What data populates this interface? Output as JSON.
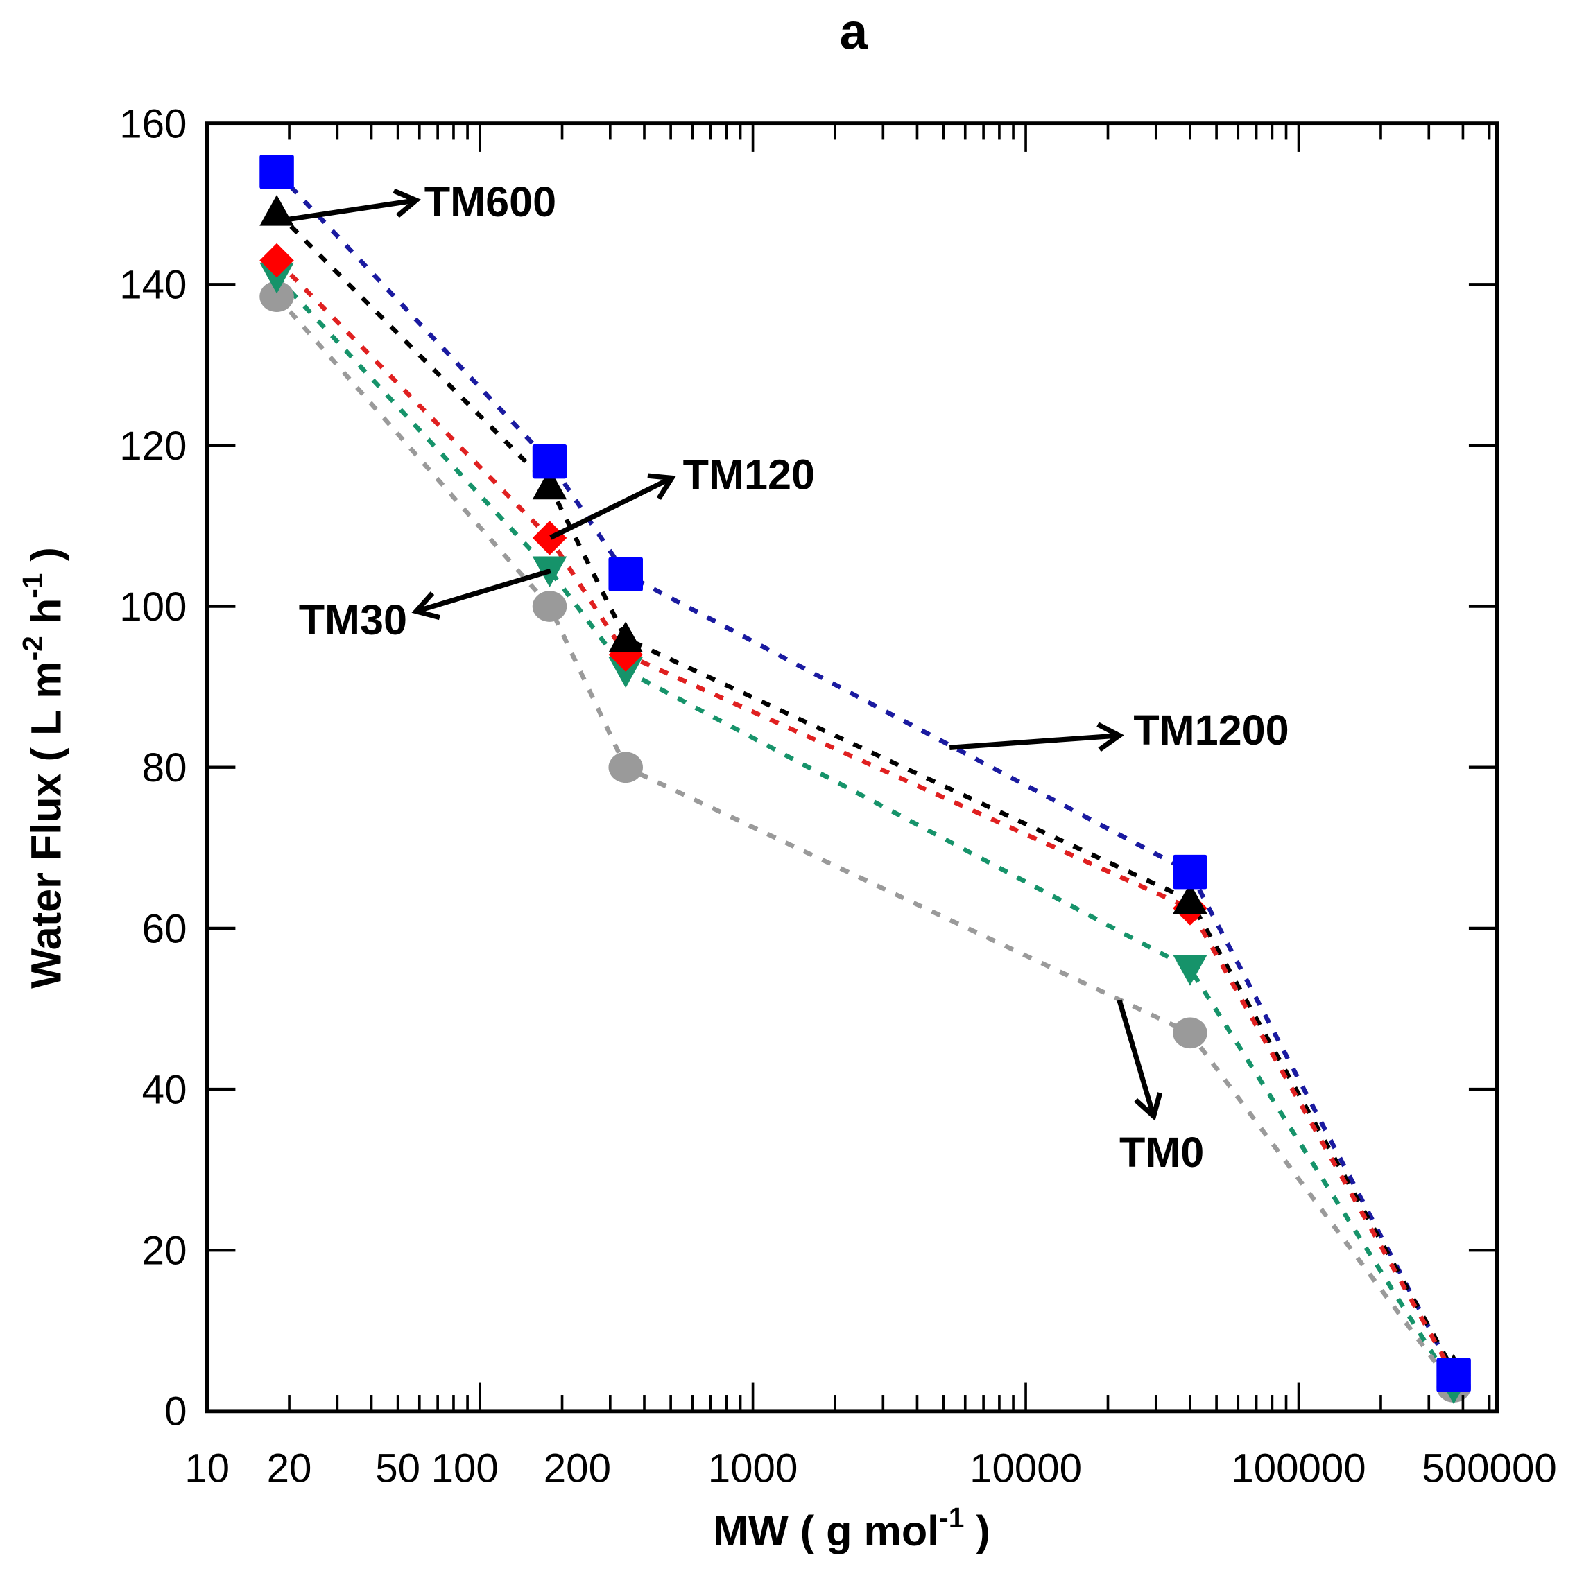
{
  "chart_data": {
    "type": "line",
    "title": "a",
    "xlabel": "MW ( g mol",
    "xlabel_sup": "-1",
    "xlabel_end": " )",
    "ylabel": "Water Flux ( L m",
    "ylabel_sup1": "-2",
    "ylabel_mid": " h",
    "ylabel_sup2": "-1",
    "ylabel_end": " )",
    "xscale": "log",
    "xlim": [
      10,
      500000
    ],
    "ylim": [
      0,
      160
    ],
    "x_ticks": [
      10,
      20,
      50,
      100,
      200,
      1000,
      10000,
      100000,
      500000
    ],
    "x_tick_labels": [
      "10",
      "20",
      "50",
      "100",
      "200",
      "1000",
      "10000",
      "100000",
      "500000"
    ],
    "y_ticks": [
      0,
      20,
      40,
      60,
      80,
      100,
      120,
      140,
      160
    ],
    "y_tick_labels": [
      "0",
      "20",
      "40",
      "60",
      "80",
      "100",
      "120",
      "140",
      "160"
    ],
    "grid": false,
    "x": [
      18,
      180,
      342,
      40000,
      370000
    ],
    "series": [
      {
        "name": "TM1200",
        "marker": "square",
        "color": "#0000ff",
        "line_color": "#1a1aa0",
        "values": [
          154,
          118,
          104,
          67,
          4.5
        ]
      },
      {
        "name": "TM600",
        "marker": "triangle-up",
        "color": "#000000",
        "line_color": "#000000",
        "values": [
          149,
          115,
          96,
          63.5,
          5
        ]
      },
      {
        "name": "TM120",
        "marker": "diamond",
        "color": "#ff0000",
        "line_color": "#e02020",
        "values": [
          143,
          108.5,
          94,
          62.5,
          4.5
        ]
      },
      {
        "name": "TM30",
        "marker": "triangle-down",
        "color": "#16936a",
        "line_color": "#16936a",
        "values": [
          141,
          104.5,
          92,
          55,
          3
        ]
      },
      {
        "name": "TM0",
        "marker": "circle",
        "color": "#9a9a9a",
        "line_color": "#9a9a9a",
        "values": [
          138.5,
          100,
          80,
          47,
          3
        ]
      }
    ],
    "annotations": [
      {
        "text": "TM600"
      },
      {
        "text": "TM120"
      },
      {
        "text": "TM30"
      },
      {
        "text": "TM1200"
      },
      {
        "text": "TM0"
      }
    ]
  }
}
